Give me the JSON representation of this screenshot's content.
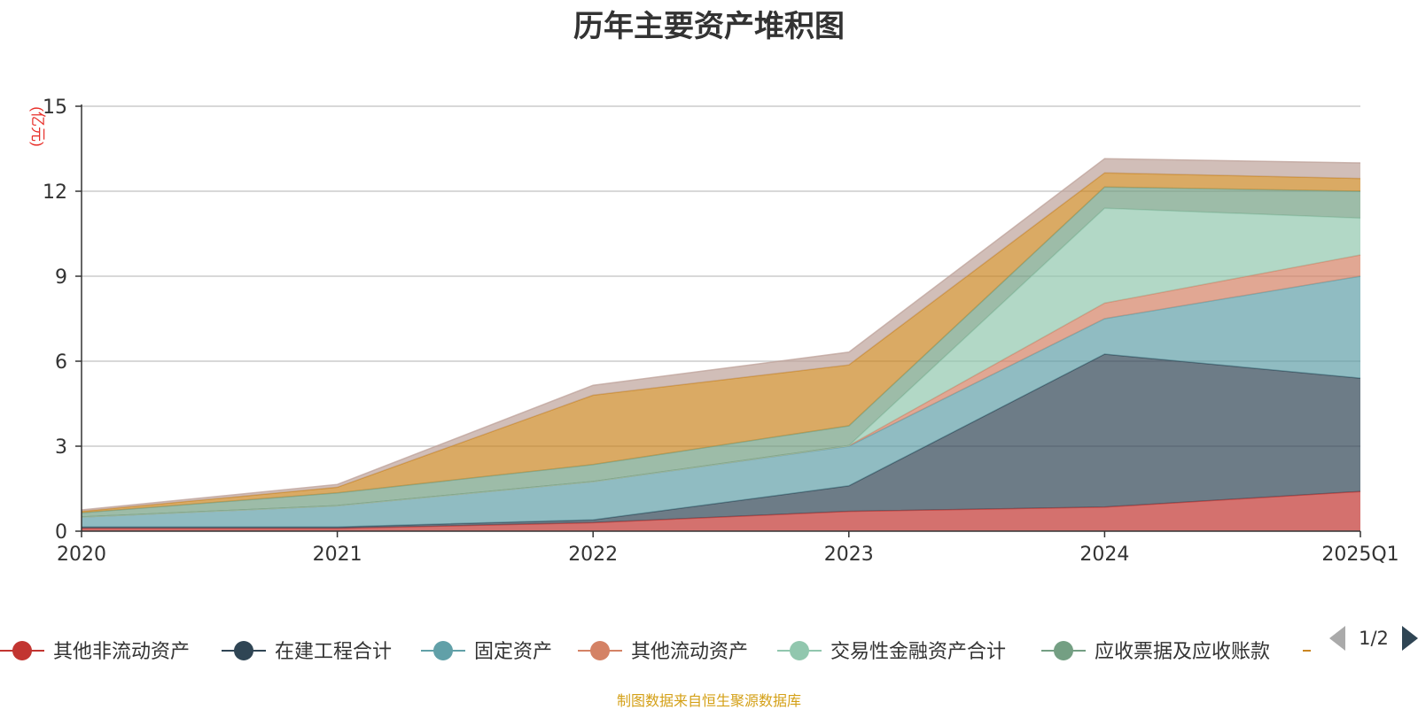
{
  "chart_data": {
    "type": "area",
    "title": "历年主要资产堆积图",
    "ylabel": "(亿元)",
    "xlabel": "",
    "categories": [
      "2020",
      "2021",
      "2022",
      "2023",
      "2024",
      "2025Q1"
    ],
    "ylim": [
      0,
      15
    ],
    "yticks": [
      0,
      3,
      6,
      9,
      12,
      15
    ],
    "stacked": true,
    "grid": true,
    "legend_position": "bottom",
    "series": [
      {
        "name": "其他非流动资产",
        "color": "#c23531",
        "values": [
          0.1,
          0.1,
          0.3,
          0.7,
          0.85,
          1.4
        ]
      },
      {
        "name": "在建工程合计",
        "color": "#2f4554",
        "values": [
          0.05,
          0.05,
          0.1,
          0.9,
          5.4,
          4.0
        ]
      },
      {
        "name": "固定资产",
        "color": "#61a0a8",
        "values": [
          0.35,
          0.75,
          1.35,
          1.4,
          1.25,
          3.6
        ]
      },
      {
        "name": "其他流动资产",
        "color": "#d48265",
        "values": [
          0,
          0,
          0,
          0.02,
          0.55,
          0.75
        ]
      },
      {
        "name": "交易性金融资产合计",
        "color": "#91c7ae",
        "values": [
          0,
          0,
          0,
          0,
          3.35,
          1.3
        ]
      },
      {
        "name": "应收票据及应收账款",
        "color": "#749f83",
        "values": [
          0.15,
          0.45,
          0.6,
          0.7,
          0.75,
          0.95
        ]
      },
      {
        "name": "",
        "color": "#ca8622",
        "values": [
          0.05,
          0.2,
          2.45,
          2.15,
          0.5,
          0.45
        ]
      },
      {
        "name": "",
        "color": "#bda29a",
        "values": [
          0.05,
          0.1,
          0.35,
          0.45,
          0.5,
          0.55
        ]
      }
    ]
  },
  "legend": {
    "page_indicator": "1/2",
    "visible_count": 7
  },
  "source_note": "制图数据来自恒生聚源数据库"
}
